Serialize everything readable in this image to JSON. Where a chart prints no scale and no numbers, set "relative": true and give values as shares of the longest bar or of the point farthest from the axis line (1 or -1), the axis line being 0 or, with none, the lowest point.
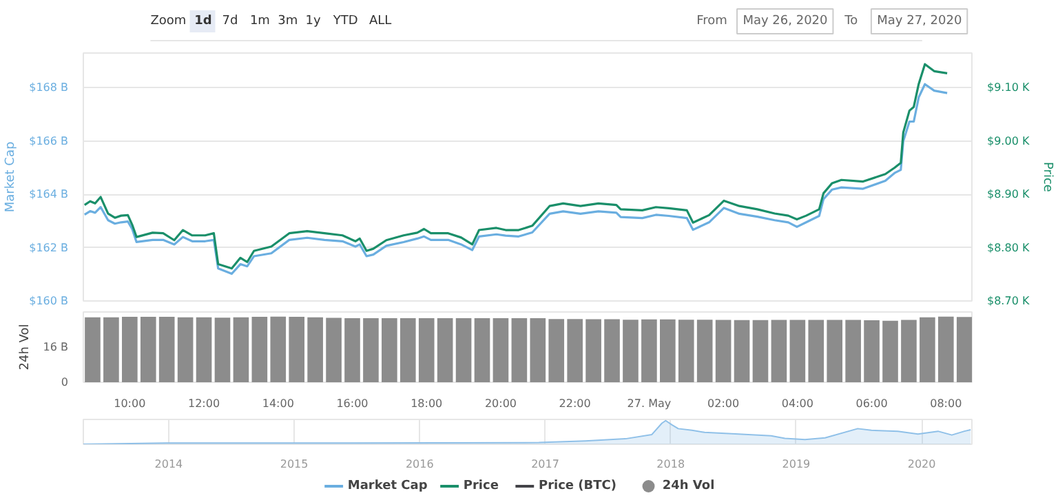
{
  "chart_data": [
    {
      "type": "other",
      "annotations": [
        "Zoom",
        "1d",
        "7d",
        "1m",
        "3m",
        "1y",
        "YTD",
        "ALL",
        "From",
        "May 26, 2020",
        "To",
        "May 27, 2020"
      ]
    },
    {
      "type": "line",
      "ylabel": "Market Cap",
      "y2label": "Price",
      "xlim": [
        "2020-05-26T08:45",
        "2020-05-27T08:42"
      ],
      "ylim": [
        160,
        169.3
      ],
      "yticks": [
        {
          "value": 160,
          "label": "$160 B"
        },
        {
          "value": 162,
          "label": "$162 B"
        },
        {
          "value": 164,
          "label": "$164 B"
        },
        {
          "value": 166,
          "label": "$166 B"
        },
        {
          "value": 168,
          "label": "$168 B"
        }
      ],
      "y2lim": [
        8.7,
        9.165
      ],
      "y2ticks": [
        {
          "value": 8.7,
          "label": "$8.70 K"
        },
        {
          "value": 8.8,
          "label": "$8.80 K"
        },
        {
          "value": 8.9,
          "label": "$8.90 K"
        },
        {
          "value": 9.0,
          "label": "$9.00 K"
        },
        {
          "value": 9.1,
          "label": "$9.10 K"
        }
      ],
      "grid": "y",
      "tick_labels": "y",
      "legend": "bottom",
      "x": [
        "2020-05-26T08:47",
        "2020-05-26T08:56",
        "2020-05-26T09:04",
        "2020-05-26T09:13",
        "2020-05-26T09:25",
        "2020-05-26T09:36",
        "2020-05-26T09:46",
        "2020-05-26T09:57",
        "2020-05-26T10:04",
        "2020-05-26T10:11",
        "2020-05-26T10:37",
        "2020-05-26T10:54",
        "2020-05-26T11:12",
        "2020-05-26T11:26",
        "2020-05-26T11:41",
        "2020-05-26T12:02",
        "2020-05-26T12:16",
        "2020-05-26T12:23",
        "2020-05-26T12:45",
        "2020-05-26T12:59",
        "2020-05-26T13:10",
        "2020-05-26T13:21",
        "2020-05-26T13:49",
        "2020-05-26T14:18",
        "2020-05-26T14:47",
        "2020-05-26T15:15",
        "2020-05-26T15:44",
        "2020-05-26T16:05",
        "2020-05-26T16:12",
        "2020-05-26T16:23",
        "2020-05-26T16:34",
        "2020-05-26T16:55",
        "2020-05-26T17:23",
        "2020-05-26T17:45",
        "2020-05-26T17:56",
        "2020-05-26T18:07",
        "2020-05-26T18:35",
        "2020-05-26T18:56",
        "2020-05-26T19:14",
        "2020-05-26T19:25",
        "2020-05-26T19:53",
        "2020-05-26T20:08",
        "2020-05-26T20:29",
        "2020-05-26T20:51",
        "2020-05-26T21:19",
        "2020-05-26T21:41",
        "2020-05-26T22:09",
        "2020-05-26T22:38",
        "2020-05-26T23:07",
        "2020-05-26T23:14",
        "2020-05-26T23:49",
        "2020-05-27T00:11",
        "2020-05-27T00:32",
        "2020-05-27T01:01",
        "2020-05-27T01:11",
        "2020-05-27T01:37",
        "2020-05-27T02:01",
        "2020-05-27T02:26",
        "2020-05-27T02:55",
        "2020-05-27T03:23",
        "2020-05-27T03:45",
        "2020-05-27T03:59",
        "2020-05-27T04:14",
        "2020-05-27T04:35",
        "2020-05-27T04:42",
        "2020-05-27T04:56",
        "2020-05-27T05:11",
        "2020-05-27T05:46",
        "2020-05-27T06:22",
        "2020-05-27T06:37",
        "2020-05-27T06:47",
        "2020-05-27T06:51",
        "2020-05-27T07:01",
        "2020-05-27T07:08",
        "2020-05-27T07:16",
        "2020-05-27T07:26",
        "2020-05-27T07:41",
        "2020-05-27T08:02"
      ],
      "series": [
        {
          "name": "Market Cap",
          "color": "#6aaee0",
          "values": [
            163.24,
            163.37,
            163.31,
            163.52,
            163.03,
            162.9,
            162.95,
            162.98,
            162.7,
            162.21,
            162.29,
            162.29,
            162.12,
            162.4,
            162.24,
            162.24,
            162.29,
            161.22,
            161.02,
            161.38,
            161.3,
            161.68,
            161.79,
            162.29,
            162.37,
            162.29,
            162.24,
            162.04,
            162.12,
            161.68,
            161.74,
            162.07,
            162.21,
            162.34,
            162.42,
            162.29,
            162.29,
            162.12,
            161.91,
            162.42,
            162.5,
            162.45,
            162.42,
            162.57,
            163.27,
            163.36,
            163.27,
            163.36,
            163.31,
            163.15,
            163.11,
            163.23,
            163.19,
            163.11,
            162.67,
            162.95,
            163.49,
            163.27,
            163.16,
            163.03,
            162.95,
            162.78,
            162.95,
            163.19,
            163.82,
            164.18,
            164.26,
            164.21,
            164.51,
            164.8,
            164.92,
            165.99,
            166.73,
            166.73,
            167.64,
            168.13,
            167.89,
            167.8
          ]
        },
        {
          "name": "Price",
          "color": "#1a8f6a",
          "axis": "y2",
          "values": [
            8.88,
            8.887,
            8.883,
            8.895,
            8.864,
            8.856,
            8.86,
            8.861,
            8.843,
            8.82,
            8.828,
            8.827,
            8.814,
            8.833,
            8.823,
            8.823,
            8.827,
            8.769,
            8.761,
            8.781,
            8.773,
            8.794,
            8.802,
            8.827,
            8.831,
            8.827,
            8.823,
            8.812,
            8.817,
            8.794,
            8.798,
            8.814,
            8.823,
            8.828,
            8.835,
            8.827,
            8.827,
            8.819,
            8.806,
            8.833,
            8.837,
            8.833,
            8.833,
            8.841,
            8.878,
            8.883,
            8.878,
            8.883,
            8.88,
            8.872,
            8.87,
            8.876,
            8.874,
            8.87,
            8.847,
            8.861,
            8.888,
            8.878,
            8.872,
            8.864,
            8.86,
            8.853,
            8.86,
            8.872,
            8.902,
            8.921,
            8.927,
            8.924,
            8.938,
            8.95,
            8.959,
            9.016,
            9.057,
            9.064,
            9.107,
            9.144,
            9.131,
            9.127
          ]
        },
        {
          "name": "Price (BTC)",
          "color": "#434348",
          "values": [
            null,
            null,
            null,
            null,
            null,
            null,
            null,
            null,
            null,
            null,
            null,
            null,
            null,
            null,
            null,
            null,
            null,
            null,
            null,
            null,
            null,
            null,
            null,
            null,
            null,
            null,
            null,
            null,
            null,
            null,
            null,
            null,
            null,
            null,
            null,
            null,
            null,
            null,
            null,
            null,
            null,
            null,
            null,
            null,
            null,
            null,
            null,
            null,
            null,
            null,
            null,
            null,
            null,
            null,
            null,
            null,
            null,
            null,
            null,
            null,
            null,
            null,
            null,
            null,
            null,
            null,
            null,
            null,
            null,
            null,
            null,
            null,
            null,
            null,
            null,
            null,
            null,
            null
          ]
        }
      ]
    },
    {
      "type": "bar",
      "ylabel": "24h Vol",
      "xlim": [
        "2020-05-26T08:45",
        "2020-05-27T08:42"
      ],
      "ylim": [
        0,
        32
      ],
      "yticks": [
        0,
        {
          "value": 16,
          "label": "16 B"
        }
      ],
      "legend": "bottom",
      "xticks": [
        {
          "value": "2020-05-26T10:00",
          "label": "10:00"
        },
        {
          "value": "2020-05-26T12:00",
          "label": "12:00"
        },
        {
          "value": "2020-05-26T14:00",
          "label": "14:00"
        },
        {
          "value": "2020-05-26T16:00",
          "label": "16:00"
        },
        {
          "value": "2020-05-26T18:00",
          "label": "18:00"
        },
        {
          "value": "2020-05-26T20:00",
          "label": "20:00"
        },
        {
          "value": "2020-05-26T22:00",
          "label": "22:00"
        },
        {
          "value": "2020-05-27T00:00",
          "label": "27. May"
        },
        {
          "value": "2020-05-27T02:00",
          "label": "02:00"
        },
        {
          "value": "2020-05-27T04:00",
          "label": "04:00"
        },
        {
          "value": "2020-05-27T06:00",
          "label": "06:00"
        },
        {
          "value": "2020-05-27T08:00",
          "label": "08:00"
        }
      ],
      "x": [
        "2020-05-26T09:00",
        "2020-05-26T09:30",
        "2020-05-26T10:00",
        "2020-05-26T10:30",
        "2020-05-26T11:00",
        "2020-05-26T11:30",
        "2020-05-26T12:00",
        "2020-05-26T12:30",
        "2020-05-26T13:00",
        "2020-05-26T13:30",
        "2020-05-26T14:00",
        "2020-05-26T14:30",
        "2020-05-26T15:00",
        "2020-05-26T15:30",
        "2020-05-26T16:00",
        "2020-05-26T16:30",
        "2020-05-26T17:00",
        "2020-05-26T17:30",
        "2020-05-26T18:00",
        "2020-05-26T18:30",
        "2020-05-26T19:00",
        "2020-05-26T19:30",
        "2020-05-26T20:00",
        "2020-05-26T20:30",
        "2020-05-26T21:00",
        "2020-05-26T21:30",
        "2020-05-26T22:00",
        "2020-05-26T22:30",
        "2020-05-26T23:00",
        "2020-05-26T23:30",
        "2020-05-27T00:00",
        "2020-05-27T00:30",
        "2020-05-27T01:00",
        "2020-05-27T01:30",
        "2020-05-27T02:00",
        "2020-05-27T02:30",
        "2020-05-27T03:00",
        "2020-05-27T03:30",
        "2020-05-27T04:00",
        "2020-05-27T04:30",
        "2020-05-27T05:00",
        "2020-05-27T05:30",
        "2020-05-27T06:00",
        "2020-05-27T06:30",
        "2020-05-27T07:00",
        "2020-05-27T07:30",
        "2020-05-27T08:00",
        "2020-05-27T08:30"
      ],
      "series": [
        {
          "name": "24h Vol",
          "color": "#8c8c8c",
          "values": [
            29.6,
            29.6,
            29.8,
            29.8,
            29.8,
            29.6,
            29.6,
            29.4,
            29.6,
            29.8,
            29.9,
            29.8,
            29.6,
            29.3,
            29.2,
            29.2,
            29.2,
            29.2,
            29.2,
            29.2,
            29.2,
            29.2,
            29.2,
            29.2,
            29.2,
            28.8,
            28.8,
            28.7,
            28.7,
            28.5,
            28.6,
            28.6,
            28.5,
            28.5,
            28.4,
            28.3,
            28.3,
            28.4,
            28.4,
            28.4,
            28.4,
            28.4,
            28.2,
            28.0,
            28.4,
            29.6,
            29.9,
            29.7
          ]
        }
      ]
    },
    {
      "type": "area",
      "relative": true,
      "tick_labels": "x",
      "grid": "x",
      "xlim": [
        2013.32,
        2020.4
      ],
      "xticks": [
        2014,
        2015,
        2016,
        2017,
        2018,
        2019,
        2020
      ],
      "x": [
        2013.32,
        2013.98,
        2015.36,
        2016.95,
        2017.32,
        2017.64,
        2017.85,
        2017.93,
        2017.96,
        2018.01,
        2018.06,
        2018.17,
        2018.27,
        2018.54,
        2018.8,
        2018.91,
        2019.07,
        2019.23,
        2019.49,
        2019.6,
        2019.81,
        2019.97,
        2020.13,
        2020.24,
        2020.34,
        2020.39
      ],
      "series": [
        {
          "color": "#8fc0e8",
          "values": [
            0,
            0.05,
            0.05,
            0.07,
            0.14,
            0.23,
            0.41,
            0.89,
            1.0,
            0.82,
            0.66,
            0.59,
            0.5,
            0.43,
            0.36,
            0.25,
            0.2,
            0.27,
            0.66,
            0.59,
            0.55,
            0.43,
            0.55,
            0.39,
            0.55,
            0.61
          ]
        }
      ]
    }
  ]
}
